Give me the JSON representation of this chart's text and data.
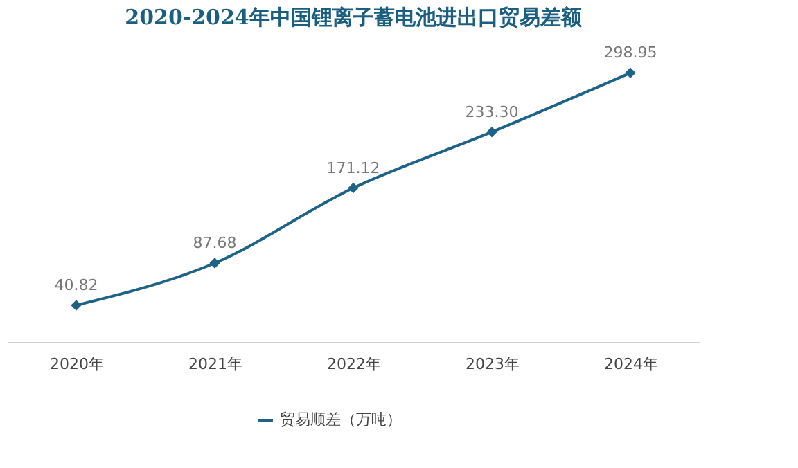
{
  "chart_data": {
    "type": "line",
    "title": "2020-2024年中国锂离子蓄电池进出口贸易差额",
    "categories": [
      "2020年",
      "2021年",
      "2022年",
      "2023年",
      "2024年"
    ],
    "series": [
      {
        "name": "贸易顺差（万吨）",
        "color": "#1f6288",
        "values": [
          40.82,
          87.68,
          171.12,
          233.3,
          298.95
        ],
        "value_labels": [
          "40.82",
          "87.68",
          "171.12",
          "233.30",
          "298.95"
        ]
      }
    ],
    "marker": "diamond",
    "line_style": "solid",
    "legend": "bottom",
    "grid": false,
    "tick_labels": "x"
  }
}
